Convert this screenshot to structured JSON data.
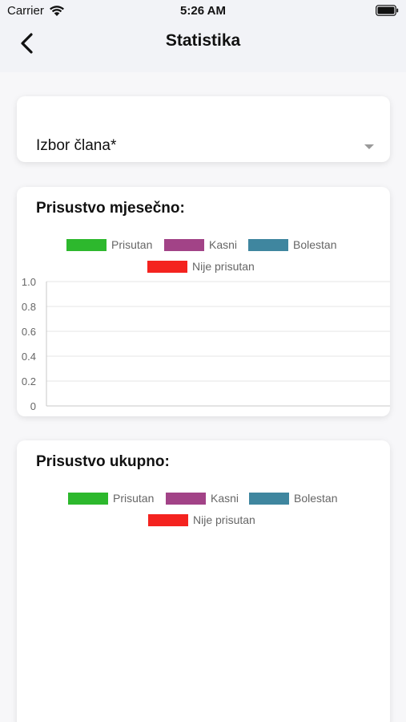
{
  "status_bar": {
    "carrier": "Carrier",
    "time": "5:26 AM",
    "icons": [
      "wifi-icon",
      "battery-icon"
    ]
  },
  "header": {
    "title": "Statistika",
    "back_icon": "chevron-left-icon"
  },
  "member_select": {
    "label": "Izbor člana*",
    "icon": "caret-down-icon"
  },
  "monthly": {
    "title": "Prisustvo mjesečno:",
    "legend": [
      {
        "label": "Prisutan",
        "color": "#2db82d"
      },
      {
        "label": "Kasni",
        "color": "#a24387"
      },
      {
        "label": "Bolestan",
        "color": "#3f869f"
      },
      {
        "label": "Nije prisutan",
        "color": "#f4231f"
      }
    ]
  },
  "total": {
    "title": "Prisustvo ukupno:",
    "legend": [
      {
        "label": "Prisutan",
        "color": "#2db82d"
      },
      {
        "label": "Kasni",
        "color": "#a24387"
      },
      {
        "label": "Bolestan",
        "color": "#3f869f"
      },
      {
        "label": "Nije prisutan",
        "color": "#f4231f"
      }
    ]
  },
  "chart_data": [
    {
      "type": "bar",
      "title": "Prisustvo mjesečno:",
      "categories": [],
      "series": [
        {
          "name": "Prisutan",
          "values": []
        },
        {
          "name": "Kasni",
          "values": []
        },
        {
          "name": "Bolestan",
          "values": []
        },
        {
          "name": "Nije prisutan",
          "values": []
        }
      ],
      "ylim": [
        0,
        1
      ],
      "y_ticks": [
        "1.0",
        "0.8",
        "0.6",
        "0.4",
        "0.2",
        "0"
      ],
      "grid": true,
      "legend_position": "top"
    },
    {
      "type": "pie",
      "title": "Prisustvo ukupno:",
      "series": [
        {
          "name": "Prisutan",
          "values": []
        },
        {
          "name": "Kasni",
          "values": []
        },
        {
          "name": "Bolestan",
          "values": []
        },
        {
          "name": "Nije prisutan",
          "values": []
        }
      ],
      "legend_position": "top"
    }
  ]
}
